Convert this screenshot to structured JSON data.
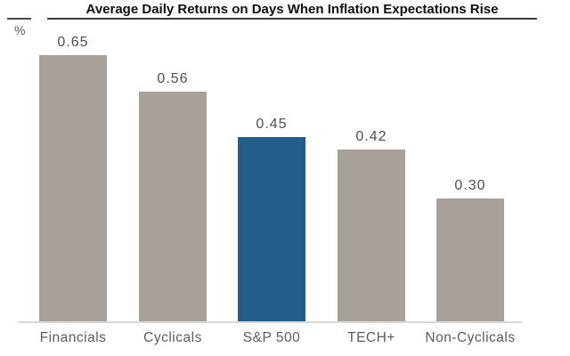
{
  "chart_data": {
    "type": "bar",
    "title": "Average Daily Returns on Days When Inflation Expectations Rise",
    "ylabel": "%",
    "xlabel": "",
    "categories": [
      "Financials",
      "Cyclicals",
      "S&P 500",
      "TECH+",
      "Non-Cyclicals"
    ],
    "values": [
      0.65,
      0.56,
      0.45,
      0.42,
      0.3
    ],
    "value_labels": [
      "0.65",
      "0.56",
      "0.45",
      "0.42",
      "0.30"
    ],
    "highlight_category": "S&P 500",
    "highlight_index": 2,
    "ylim": [
      0,
      0.72
    ],
    "grid": false,
    "legend": false
  },
  "colors": {
    "bar_default": "#a8a19a",
    "bar_highlight": "#235d8b",
    "title_text": "#111111",
    "value_label_text": "#4f4f4f",
    "category_label_text": "#5d5d5d",
    "axis_line": "#d9d9d9",
    "title_rule": "#3c3c3c"
  }
}
